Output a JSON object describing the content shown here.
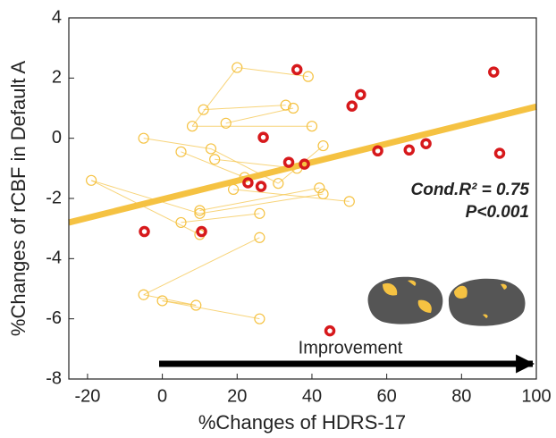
{
  "chart_data": {
    "type": "scatter",
    "xlabel": "%Changes of HDRS-17",
    "ylabel": "%Changes of rCBF in Default A",
    "xlim": [
      -25,
      100
    ],
    "ylim": [
      -8,
      4
    ],
    "xticks": [
      -20,
      0,
      20,
      40,
      60,
      80,
      100
    ],
    "yticks": [
      -8,
      -6,
      -4,
      -2,
      0,
      2,
      4
    ],
    "annotations": [
      "Cond.R² = 0.75",
      "P<0.001",
      "Improvement"
    ],
    "fit": {
      "color": "#f5c242",
      "x": [
        -25,
        100
      ],
      "y": [
        -2.8,
        1.05
      ]
    },
    "series": [
      {
        "color": "#f5c242",
        "style": "hollow-thin",
        "x": [
          -19,
          -5,
          -5,
          0,
          5,
          5,
          8,
          11,
          10,
          10,
          10,
          9,
          13,
          14,
          17,
          20,
          22,
          19,
          26,
          26,
          26,
          31,
          33,
          35,
          39,
          40,
          36,
          42,
          43,
          43,
          50
        ],
        "y": [
          -1.4,
          0,
          -5.2,
          -5.4,
          -0.45,
          -2.8,
          0.4,
          0.95,
          -2.4,
          -2.5,
          -3.2,
          -5.55,
          -0.35,
          -0.7,
          0.5,
          2.35,
          -1.3,
          -1.7,
          -2.5,
          -3.3,
          -6,
          -1.5,
          1.1,
          1.0,
          2.05,
          0.4,
          -1.0,
          -1.65,
          -1.85,
          -0.25,
          -2.1
        ],
        "links": [
          [
            0,
            10
          ],
          [
            1,
            12
          ],
          [
            2,
            19
          ],
          [
            3,
            20
          ],
          [
            4,
            16
          ],
          [
            5,
            18
          ],
          [
            6,
            25
          ],
          [
            7,
            22
          ],
          [
            8,
            27
          ],
          [
            9,
            28
          ],
          [
            11,
            3
          ],
          [
            13,
            26
          ],
          [
            14,
            23
          ],
          [
            15,
            24
          ],
          [
            17,
            30
          ],
          [
            21,
            29
          ],
          [
            0,
            9
          ],
          [
            2,
            11
          ],
          [
            12,
            21
          ],
          [
            6,
            15
          ]
        ]
      },
      {
        "color": "#d7191c",
        "style": "hollow-bold",
        "x": [
          -4.8,
          10.5,
          22.9,
          26.4,
          27,
          36,
          33.8,
          38,
          50.7,
          53,
          57.6,
          66,
          70.5,
          88.6,
          90.2,
          44.8
        ],
        "y": [
          -3.1,
          -3.1,
          -1.48,
          -1.6,
          0.03,
          2.28,
          -0.8,
          -0.86,
          1.07,
          1.45,
          -0.42,
          -0.39,
          -0.18,
          2.2,
          -0.5,
          -6.4
        ]
      }
    ]
  }
}
